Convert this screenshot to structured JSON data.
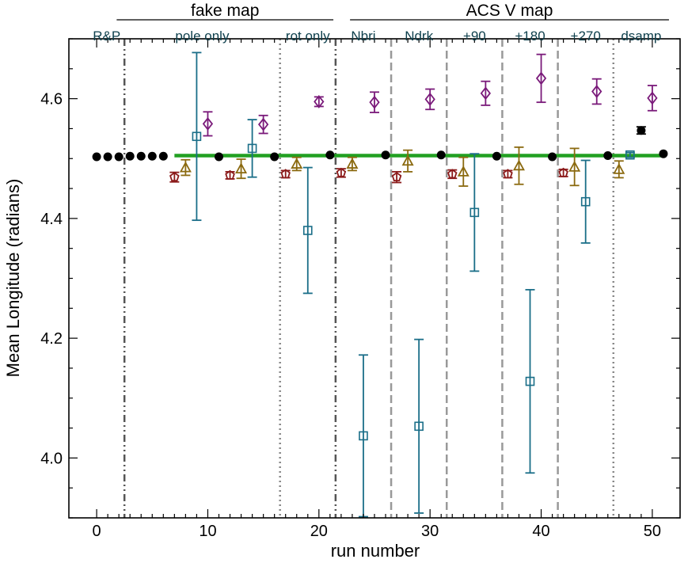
{
  "chart_data": {
    "type": "scatter",
    "title": "",
    "xlabel": "run number",
    "ylabel": "Mean Longitude (radians)",
    "xlim": [
      -2.5,
      52.5
    ],
    "ylim": [
      3.9,
      4.7
    ],
    "xticks": [
      0,
      10,
      20,
      30,
      40,
      50
    ],
    "yticks": [
      4.0,
      4.2,
      4.4,
      4.6
    ],
    "grid": false,
    "reference_line": {
      "y": 4.505,
      "x_start": 7,
      "x_end": 51,
      "color": "#22a022"
    },
    "group_labels": [
      {
        "text": "fake map",
        "x_start": 1.8,
        "x_end": 21.3
      },
      {
        "text": "ACS V map",
        "x_start": 22.8,
        "x_end": 51.5
      }
    ],
    "section_labels": [
      {
        "text": "R&P",
        "x": 0.9
      },
      {
        "text": "pole only",
        "x": 9.5
      },
      {
        "text": "rot only",
        "x": 19.0
      },
      {
        "text": "Nbri",
        "x": 24.0
      },
      {
        "text": "Ndrk",
        "x": 29.0
      },
      {
        "text": "+90",
        "x": 34.0
      },
      {
        "text": "+180",
        "x": 39.0
      },
      {
        "text": "+270",
        "x": 44.0
      },
      {
        "text": "dsamp",
        "x": 49.0
      }
    ],
    "dividers": [
      {
        "x": 2.5,
        "style": "dash-dot-dot"
      },
      {
        "x": 16.5,
        "style": "dotted"
      },
      {
        "x": 21.5,
        "style": "dash-dot-dot"
      },
      {
        "x": 26.5,
        "style": "dashed"
      },
      {
        "x": 31.5,
        "style": "dashed"
      },
      {
        "x": 36.5,
        "style": "dashed"
      },
      {
        "x": 41.5,
        "style": "dashed"
      },
      {
        "x": 46.5,
        "style": "dotted"
      }
    ],
    "series": [
      {
        "marker": "filled-circle",
        "color": "#000000",
        "points": [
          {
            "x": 0,
            "y": 4.503
          },
          {
            "x": 1,
            "y": 4.503
          },
          {
            "x": 2,
            "y": 4.503
          },
          {
            "x": 3,
            "y": 4.504
          },
          {
            "x": 4,
            "y": 4.504
          },
          {
            "x": 5,
            "y": 4.504
          },
          {
            "x": 6,
            "y": 4.504
          },
          {
            "x": 11,
            "y": 4.503
          },
          {
            "x": 16,
            "y": 4.503
          },
          {
            "x": 21,
            "y": 4.506
          },
          {
            "x": 26,
            "y": 4.506
          },
          {
            "x": 31,
            "y": 4.506
          },
          {
            "x": 36,
            "y": 4.504
          },
          {
            "x": 41,
            "y": 4.503
          },
          {
            "x": 46,
            "y": 4.505
          },
          {
            "x": 49,
            "y": 4.547,
            "err": 0.006
          },
          {
            "x": 51,
            "y": 4.508
          }
        ]
      },
      {
        "marker": "pentagon",
        "color": "#8b1a1a",
        "points": [
          {
            "x": 7,
            "y": 4.469,
            "err": 0.008
          },
          {
            "x": 12,
            "y": 4.472,
            "err": 0.006
          },
          {
            "x": 17,
            "y": 4.474,
            "err": 0.006
          },
          {
            "x": 22,
            "y": 4.476,
            "err": 0.007
          },
          {
            "x": 27,
            "y": 4.469,
            "err": 0.009
          },
          {
            "x": 32,
            "y": 4.474,
            "err": 0.007
          },
          {
            "x": 37,
            "y": 4.474,
            "err": 0.006
          },
          {
            "x": 42,
            "y": 4.476,
            "err": 0.006
          }
        ]
      },
      {
        "marker": "triangle",
        "color": "#8b6a10",
        "points": [
          {
            "x": 8,
            "y": 4.485,
            "err": 0.013
          },
          {
            "x": 13,
            "y": 4.483,
            "err": 0.016
          },
          {
            "x": 18,
            "y": 4.491,
            "err": 0.011
          },
          {
            "x": 23,
            "y": 4.491,
            "err": 0.011
          },
          {
            "x": 28,
            "y": 4.496,
            "err": 0.018
          },
          {
            "x": 33,
            "y": 4.478,
            "err": 0.024
          },
          {
            "x": 38,
            "y": 4.488,
            "err": 0.031
          },
          {
            "x": 43,
            "y": 4.486,
            "err": 0.031
          },
          {
            "x": 47,
            "y": 4.482,
            "err": 0.014
          }
        ]
      },
      {
        "marker": "open-square",
        "color": "#1a6e88",
        "points": [
          {
            "x": 9,
            "y": 4.537,
            "err": 0.14
          },
          {
            "x": 14,
            "y": 4.517,
            "err": 0.048
          },
          {
            "x": 19,
            "y": 4.38,
            "err": 0.105
          },
          {
            "x": 24,
            "y": 4.037,
            "err": 0.135
          },
          {
            "x": 29,
            "y": 4.053,
            "err": 0.145
          },
          {
            "x": 34,
            "y": 4.41,
            "err": 0.098
          },
          {
            "x": 39,
            "y": 4.128,
            "err": 0.153
          },
          {
            "x": 44,
            "y": 4.428,
            "err": 0.069
          },
          {
            "x": 48,
            "y": 4.506,
            "err": 0.004
          }
        ]
      },
      {
        "marker": "open-diamond",
        "color": "#7a1a7a",
        "points": [
          {
            "x": 10,
            "y": 4.558,
            "err": 0.02
          },
          {
            "x": 15,
            "y": 4.557,
            "err": 0.015
          },
          {
            "x": 20,
            "y": 4.595,
            "err": 0.008
          },
          {
            "x": 25,
            "y": 4.594,
            "err": 0.017
          },
          {
            "x": 30,
            "y": 4.599,
            "err": 0.017
          },
          {
            "x": 35,
            "y": 4.609,
            "err": 0.02
          },
          {
            "x": 40,
            "y": 4.634,
            "err": 0.04
          },
          {
            "x": 45,
            "y": 4.612,
            "err": 0.021
          },
          {
            "x": 50,
            "y": 4.601,
            "err": 0.021
          }
        ]
      }
    ]
  }
}
